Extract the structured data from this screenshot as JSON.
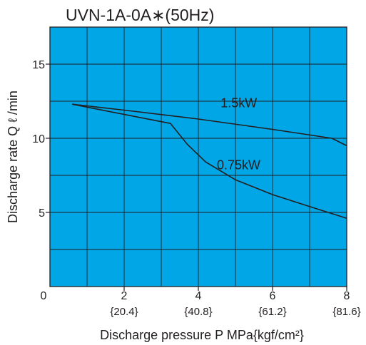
{
  "chart_data": {
    "type": "line",
    "title": "UVN-1A-0A∗(50Hz)",
    "xlabel": "Discharge pressure P MPa{kgf/cm²}",
    "ylabel": "Discharge rate Q ℓ /min",
    "xlim": [
      0,
      8
    ],
    "ylim": [
      0,
      17.5
    ],
    "x_ticks": [
      {
        "value": 0,
        "label": "0",
        "sublabel": ""
      },
      {
        "value": 2,
        "label": "2",
        "sublabel": "{20.4}"
      },
      {
        "value": 4,
        "label": "4",
        "sublabel": "{40.8}"
      },
      {
        "value": 6,
        "label": "6",
        "sublabel": "{61.2}"
      },
      {
        "value": 8,
        "label": "8",
        "sublabel": "{81.6}"
      }
    ],
    "y_ticks": [
      {
        "value": 5,
        "label": "5"
      },
      {
        "value": 10,
        "label": "10"
      },
      {
        "value": 15,
        "label": "15"
      }
    ],
    "x_grid": [
      1,
      2,
      3,
      4,
      5,
      6,
      7
    ],
    "y_grid": [
      2.5,
      5,
      7.5,
      10,
      12.5,
      15
    ],
    "grid": true,
    "background_color": "#00a6e6",
    "line_color": "#231f20",
    "series": [
      {
        "name": "1.5kW",
        "label_at": [
          4.6,
          12.1
        ],
        "points": [
          [
            0.6,
            12.3
          ],
          [
            2.0,
            11.9
          ],
          [
            4.0,
            11.3
          ],
          [
            6.0,
            10.6
          ],
          [
            7.6,
            10.0
          ],
          [
            8.0,
            9.5
          ]
        ]
      },
      {
        "name": "0.75kW",
        "label_at": [
          4.5,
          7.9
        ],
        "points": [
          [
            0.6,
            12.3
          ],
          [
            3.25,
            11.0
          ],
          [
            3.7,
            9.6
          ],
          [
            4.2,
            8.4
          ],
          [
            5.0,
            7.2
          ],
          [
            6.0,
            6.2
          ],
          [
            7.0,
            5.4
          ],
          [
            8.0,
            4.6
          ]
        ]
      }
    ]
  }
}
